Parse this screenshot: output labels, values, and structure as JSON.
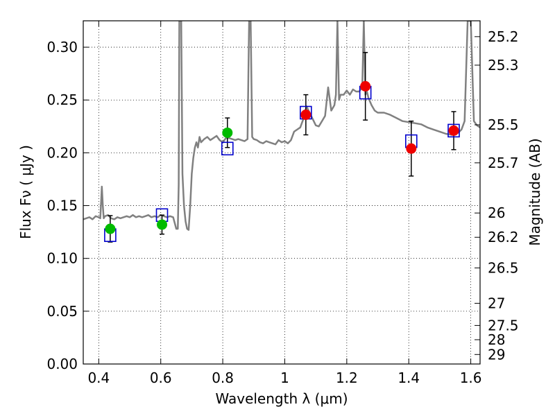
{
  "chart_data": {
    "type": "scatter",
    "xlabel": "Wavelength  λ (μm)",
    "ylabel": "Flux  Fν  ( μJy )",
    "ylabel_right": "Magnitude (AB)",
    "xlim": [
      0.35,
      1.63
    ],
    "ylim": [
      0.0,
      0.325
    ],
    "grid": true,
    "x_ticks": [
      0.4,
      0.6,
      0.8,
      1.0,
      1.2,
      1.4,
      1.6
    ],
    "x_tick_labels": [
      "0.4",
      "0.6",
      "0.8",
      "1",
      "1.2",
      "1.4",
      "1.6"
    ],
    "y_ticks": [
      0.0,
      0.05,
      0.1,
      0.15,
      0.2,
      0.25,
      0.3
    ],
    "y_tick_labels": [
      "0.00",
      "0.05",
      "0.10",
      "0.15",
      "0.20",
      "0.25",
      "0.30"
    ],
    "right_ticks": [
      {
        "flux": 0.31,
        "label": "25.2"
      },
      {
        "flux": 0.283,
        "label": "25.3"
      },
      {
        "flux": 0.2265,
        "label": "25.5"
      },
      {
        "flux": 0.1905,
        "label": "25.7"
      },
      {
        "flux": 0.143,
        "label": "26"
      },
      {
        "flux": 0.12,
        "label": "26.2"
      },
      {
        "flux": 0.091,
        "label": "26.5"
      },
      {
        "flux": 0.0575,
        "label": "27"
      },
      {
        "flux": 0.0365,
        "label": "27.5"
      },
      {
        "flux": 0.023,
        "label": "28"
      },
      {
        "flux": 0.009,
        "label": "29"
      }
    ],
    "series": [
      {
        "kind": "spectrum",
        "color": "#808080",
        "x": [
          0.35,
          0.36,
          0.37,
          0.38,
          0.39,
          0.4,
          0.405,
          0.41,
          0.413,
          0.416,
          0.42,
          0.43,
          0.44,
          0.45,
          0.46,
          0.47,
          0.48,
          0.49,
          0.5,
          0.51,
          0.52,
          0.53,
          0.54,
          0.55,
          0.56,
          0.57,
          0.58,
          0.59,
          0.6,
          0.61,
          0.62,
          0.63,
          0.64,
          0.65,
          0.655,
          0.658,
          0.66,
          0.663,
          0.666,
          0.67,
          0.675,
          0.68,
          0.685,
          0.69,
          0.695,
          0.7,
          0.705,
          0.71,
          0.715,
          0.72,
          0.725,
          0.73,
          0.74,
          0.75,
          0.76,
          0.77,
          0.78,
          0.79,
          0.8,
          0.81,
          0.82,
          0.83,
          0.84,
          0.85,
          0.86,
          0.87,
          0.88,
          0.885,
          0.89,
          0.895,
          0.9,
          0.91,
          0.92,
          0.93,
          0.94,
          0.95,
          0.96,
          0.97,
          0.98,
          0.99,
          1.0,
          1.01,
          1.02,
          1.03,
          1.04,
          1.05,
          1.06,
          1.07,
          1.08,
          1.09,
          1.1,
          1.11,
          1.12,
          1.13,
          1.14,
          1.15,
          1.16,
          1.165,
          1.17,
          1.175,
          1.18,
          1.19,
          1.2,
          1.21,
          1.22,
          1.23,
          1.24,
          1.25,
          1.255,
          1.26,
          1.265,
          1.27,
          1.28,
          1.29,
          1.3,
          1.32,
          1.34,
          1.36,
          1.38,
          1.4,
          1.42,
          1.44,
          1.46,
          1.48,
          1.5,
          1.52,
          1.54,
          1.56,
          1.57,
          1.58,
          1.59,
          1.6,
          1.61,
          1.62,
          1.63
        ],
        "y": [
          0.137,
          0.138,
          0.139,
          0.137,
          0.14,
          0.139,
          0.138,
          0.168,
          0.15,
          0.138,
          0.14,
          0.141,
          0.138,
          0.137,
          0.139,
          0.138,
          0.139,
          0.14,
          0.139,
          0.141,
          0.139,
          0.14,
          0.139,
          0.14,
          0.141,
          0.139,
          0.14,
          0.139,
          0.141,
          0.14,
          0.139,
          0.14,
          0.139,
          0.128,
          0.128,
          0.17,
          0.325,
          0.325,
          0.325,
          0.18,
          0.15,
          0.135,
          0.128,
          0.127,
          0.15,
          0.18,
          0.195,
          0.205,
          0.21,
          0.205,
          0.215,
          0.21,
          0.213,
          0.215,
          0.212,
          0.214,
          0.216,
          0.212,
          0.21,
          0.214,
          0.214,
          0.213,
          0.212,
          0.213,
          0.212,
          0.211,
          0.213,
          0.325,
          0.325,
          0.215,
          0.213,
          0.212,
          0.21,
          0.209,
          0.211,
          0.21,
          0.209,
          0.208,
          0.212,
          0.21,
          0.211,
          0.209,
          0.212,
          0.22,
          0.222,
          0.224,
          0.232,
          0.244,
          0.238,
          0.232,
          0.226,
          0.225,
          0.23,
          0.235,
          0.262,
          0.24,
          0.245,
          0.255,
          0.325,
          0.25,
          0.255,
          0.255,
          0.259,
          0.255,
          0.26,
          0.258,
          0.258,
          0.262,
          0.325,
          0.255,
          0.258,
          0.252,
          0.245,
          0.24,
          0.238,
          0.238,
          0.236,
          0.233,
          0.23,
          0.229,
          0.228,
          0.227,
          0.224,
          0.222,
          0.22,
          0.218,
          0.217,
          0.219,
          0.222,
          0.23,
          0.325,
          0.325,
          0.23,
          0.226,
          0.224
        ]
      },
      {
        "kind": "model-squares",
        "color": "#0000cc",
        "x": [
          0.437,
          0.604,
          0.815,
          1.068,
          1.26,
          1.408,
          1.545
        ],
        "y": [
          0.122,
          0.141,
          0.204,
          0.238,
          0.257,
          0.211,
          0.221
        ]
      },
      {
        "kind": "observed-green",
        "color": "#00bb00",
        "x": [
          0.437,
          0.604,
          0.815
        ],
        "y": [
          0.128,
          0.132,
          0.219
        ],
        "err": [
          0.0125,
          0.009,
          0.014
        ]
      },
      {
        "kind": "observed-red",
        "color": "#ee0000",
        "x": [
          1.068,
          1.26,
          1.408,
          1.545
        ],
        "y": [
          0.236,
          0.263,
          0.204,
          0.221
        ],
        "err": [
          0.019,
          0.032,
          0.026,
          0.018
        ]
      }
    ]
  }
}
